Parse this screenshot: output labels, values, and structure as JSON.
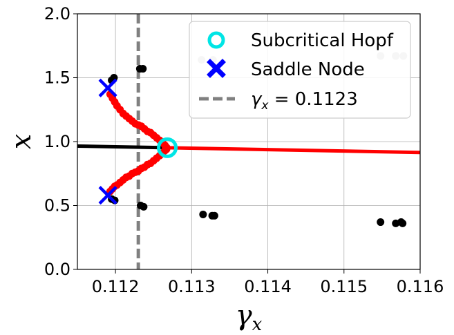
{
  "chart_data": {
    "type": "scatter",
    "xlabel": "γx",
    "ylabel": "x",
    "xlim": [
      0.1115,
      0.116
    ],
    "ylim": [
      0.0,
      2.0
    ],
    "xticks": [
      0.112,
      0.113,
      0.114,
      0.115,
      0.116
    ],
    "xtick_labels": [
      "0.112",
      "0.113",
      "0.114",
      "0.115",
      "0.116"
    ],
    "yticks": [
      0.0,
      0.5,
      1.0,
      1.5,
      2.0
    ],
    "ytick_labels": [
      "0.0",
      "0.5",
      "1.0",
      "1.5",
      "2.0"
    ],
    "grid": true,
    "legend_position": "top-right",
    "legend": [
      {
        "label": "Subcritical Hopf",
        "marker": "open-circle",
        "color": "#00e5e5"
      },
      {
        "label": "Saddle Node",
        "marker": "x",
        "color": "#0000ff"
      },
      {
        "label_prefix": "γ",
        "label_sub": "x",
        "label_suffix": " = 0.1123",
        "marker": "dashed-line",
        "color": "#808080"
      }
    ],
    "vline_x": 0.1123,
    "series": [
      {
        "role": "stable-equilibrium",
        "style": "line",
        "color": "#000000",
        "x": [
          0.1115,
          0.11268
        ],
        "y": [
          0.965,
          0.952
        ]
      },
      {
        "role": "unstable-equilibrium",
        "style": "line",
        "color": "#ff0000",
        "x": [
          0.11268,
          0.116
        ],
        "y": [
          0.952,
          0.915
        ]
      },
      {
        "role": "unstable-cycle",
        "style": "points",
        "color": "#ff0000",
        "x": [
          0.11193,
          0.11196,
          0.11199,
          0.11202,
          0.11206,
          0.1121,
          0.11214,
          0.11218,
          0.11222,
          0.11226,
          0.1123,
          0.11234,
          0.11238,
          0.11242,
          0.11246,
          0.1125,
          0.11254,
          0.11258,
          0.11262,
          0.11265,
          0.11267,
          0.11267,
          0.11265,
          0.11262,
          0.11258,
          0.11254,
          0.1125,
          0.11246,
          0.11242,
          0.11238,
          0.11234,
          0.1123,
          0.11226,
          0.11222,
          0.11218,
          0.11214,
          0.1121,
          0.11206,
          0.11202,
          0.11199,
          0.11196,
          0.11193
        ],
        "y": [
          1.37,
          1.34,
          1.31,
          1.28,
          1.25,
          1.22,
          1.2,
          1.18,
          1.16,
          1.14,
          1.13,
          1.12,
          1.1,
          1.08,
          1.07,
          1.05,
          1.03,
          1.01,
          0.99,
          0.97,
          0.955,
          0.94,
          0.93,
          0.91,
          0.89,
          0.87,
          0.85,
          0.83,
          0.82,
          0.8,
          0.79,
          0.77,
          0.76,
          0.75,
          0.73,
          0.72,
          0.7,
          0.68,
          0.66,
          0.65,
          0.63,
          0.61
        ]
      },
      {
        "role": "stable-cycle-max",
        "style": "points",
        "color": "#000000",
        "x": [
          0.11195,
          0.11198,
          0.11232,
          0.11236
        ],
        "y": [
          1.48,
          1.5,
          1.57,
          1.57
        ]
      },
      {
        "role": "stable-cycle-min",
        "style": "points",
        "color": "#000000",
        "x": [
          0.11195,
          0.11199,
          0.11233,
          0.11237,
          0.11315,
          0.11327,
          0.1133,
          0.11548,
          0.11568,
          0.11575,
          0.11577
        ],
        "y": [
          0.55,
          0.54,
          0.5,
          0.49,
          0.43,
          0.42,
          0.42,
          0.37,
          0.36,
          0.37,
          0.36
        ]
      },
      {
        "role": "stable-cycle-max-faint",
        "style": "points",
        "color": "#c0c0c0",
        "x": [
          0.11313,
          0.11328,
          0.11548,
          0.11568,
          0.11578
        ],
        "y": [
          1.64,
          1.64,
          1.67,
          1.67,
          1.67
        ]
      },
      {
        "role": "saddle-node",
        "style": "x-markers",
        "color": "#0000ff",
        "x": [
          0.1119,
          0.1119
        ],
        "y": [
          1.42,
          0.58
        ]
      },
      {
        "role": "subcritical-hopf",
        "style": "open-circle",
        "color": "#00e5e5",
        "x": [
          0.11268
        ],
        "y": [
          0.952
        ]
      }
    ]
  }
}
